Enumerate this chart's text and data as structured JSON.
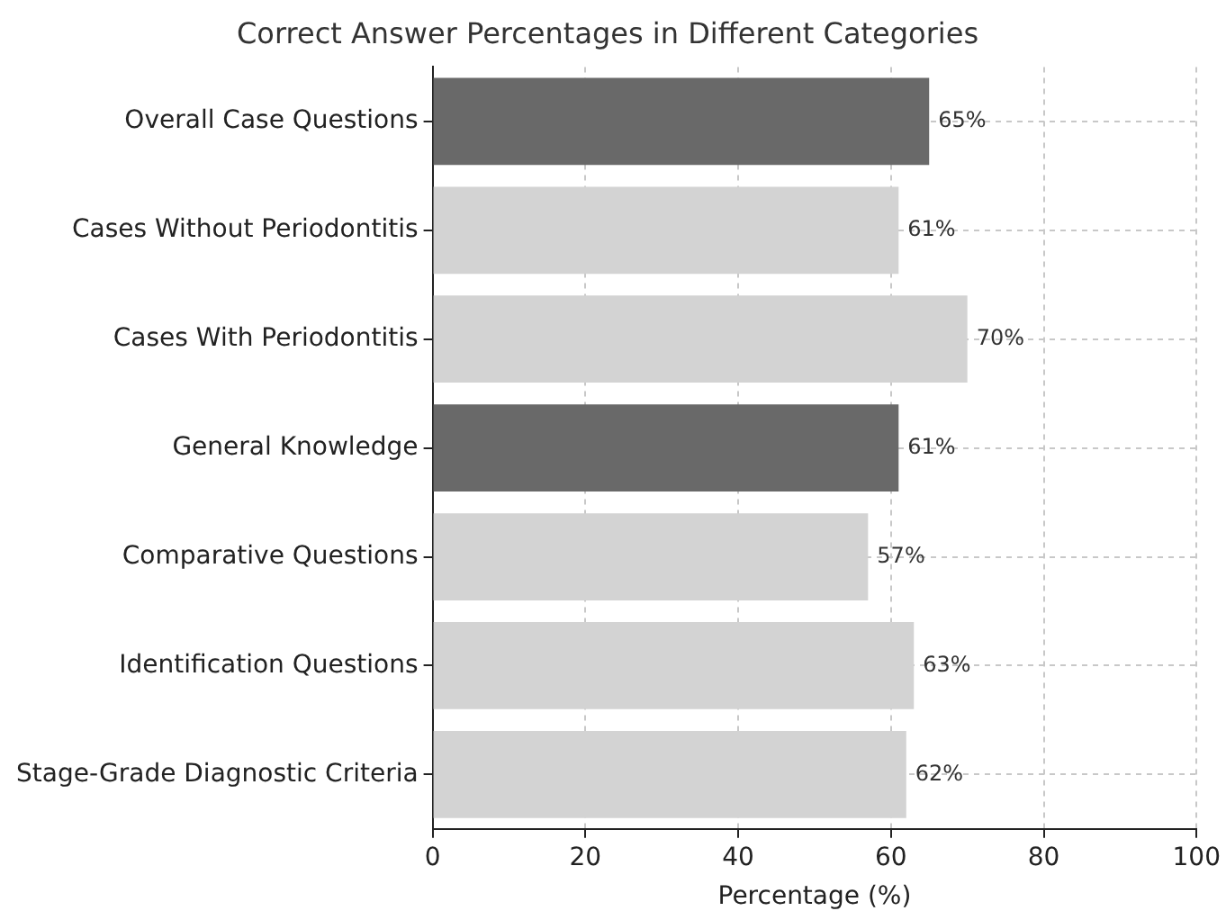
{
  "chart_data": {
    "type": "bar",
    "orientation": "horizontal",
    "title": "Correct Answer Percentages in Different Categories",
    "xlabel": "Percentage (%)",
    "categories": [
      "Overall Case Questions",
      "Cases Without Periodontitis",
      "Cases With Periodontitis",
      "General Knowledge",
      "Comparative Questions",
      "Identification Questions",
      "Stage-Grade Diagnostic Criteria"
    ],
    "values": [
      65,
      61,
      70,
      61,
      57,
      63,
      62
    ],
    "colors": [
      "#696969",
      "#d3d3d3",
      "#d3d3d3",
      "#696969",
      "#d3d3d3",
      "#d3d3d3",
      "#d3d3d3"
    ],
    "value_labels": [
      "65%",
      "61%",
      "70%",
      "61%",
      "57%",
      "63%",
      "62%"
    ],
    "xlim": [
      0,
      100
    ],
    "xticks": [
      0,
      20,
      40,
      60,
      80,
      100
    ],
    "grid": true,
    "legend": false
  }
}
